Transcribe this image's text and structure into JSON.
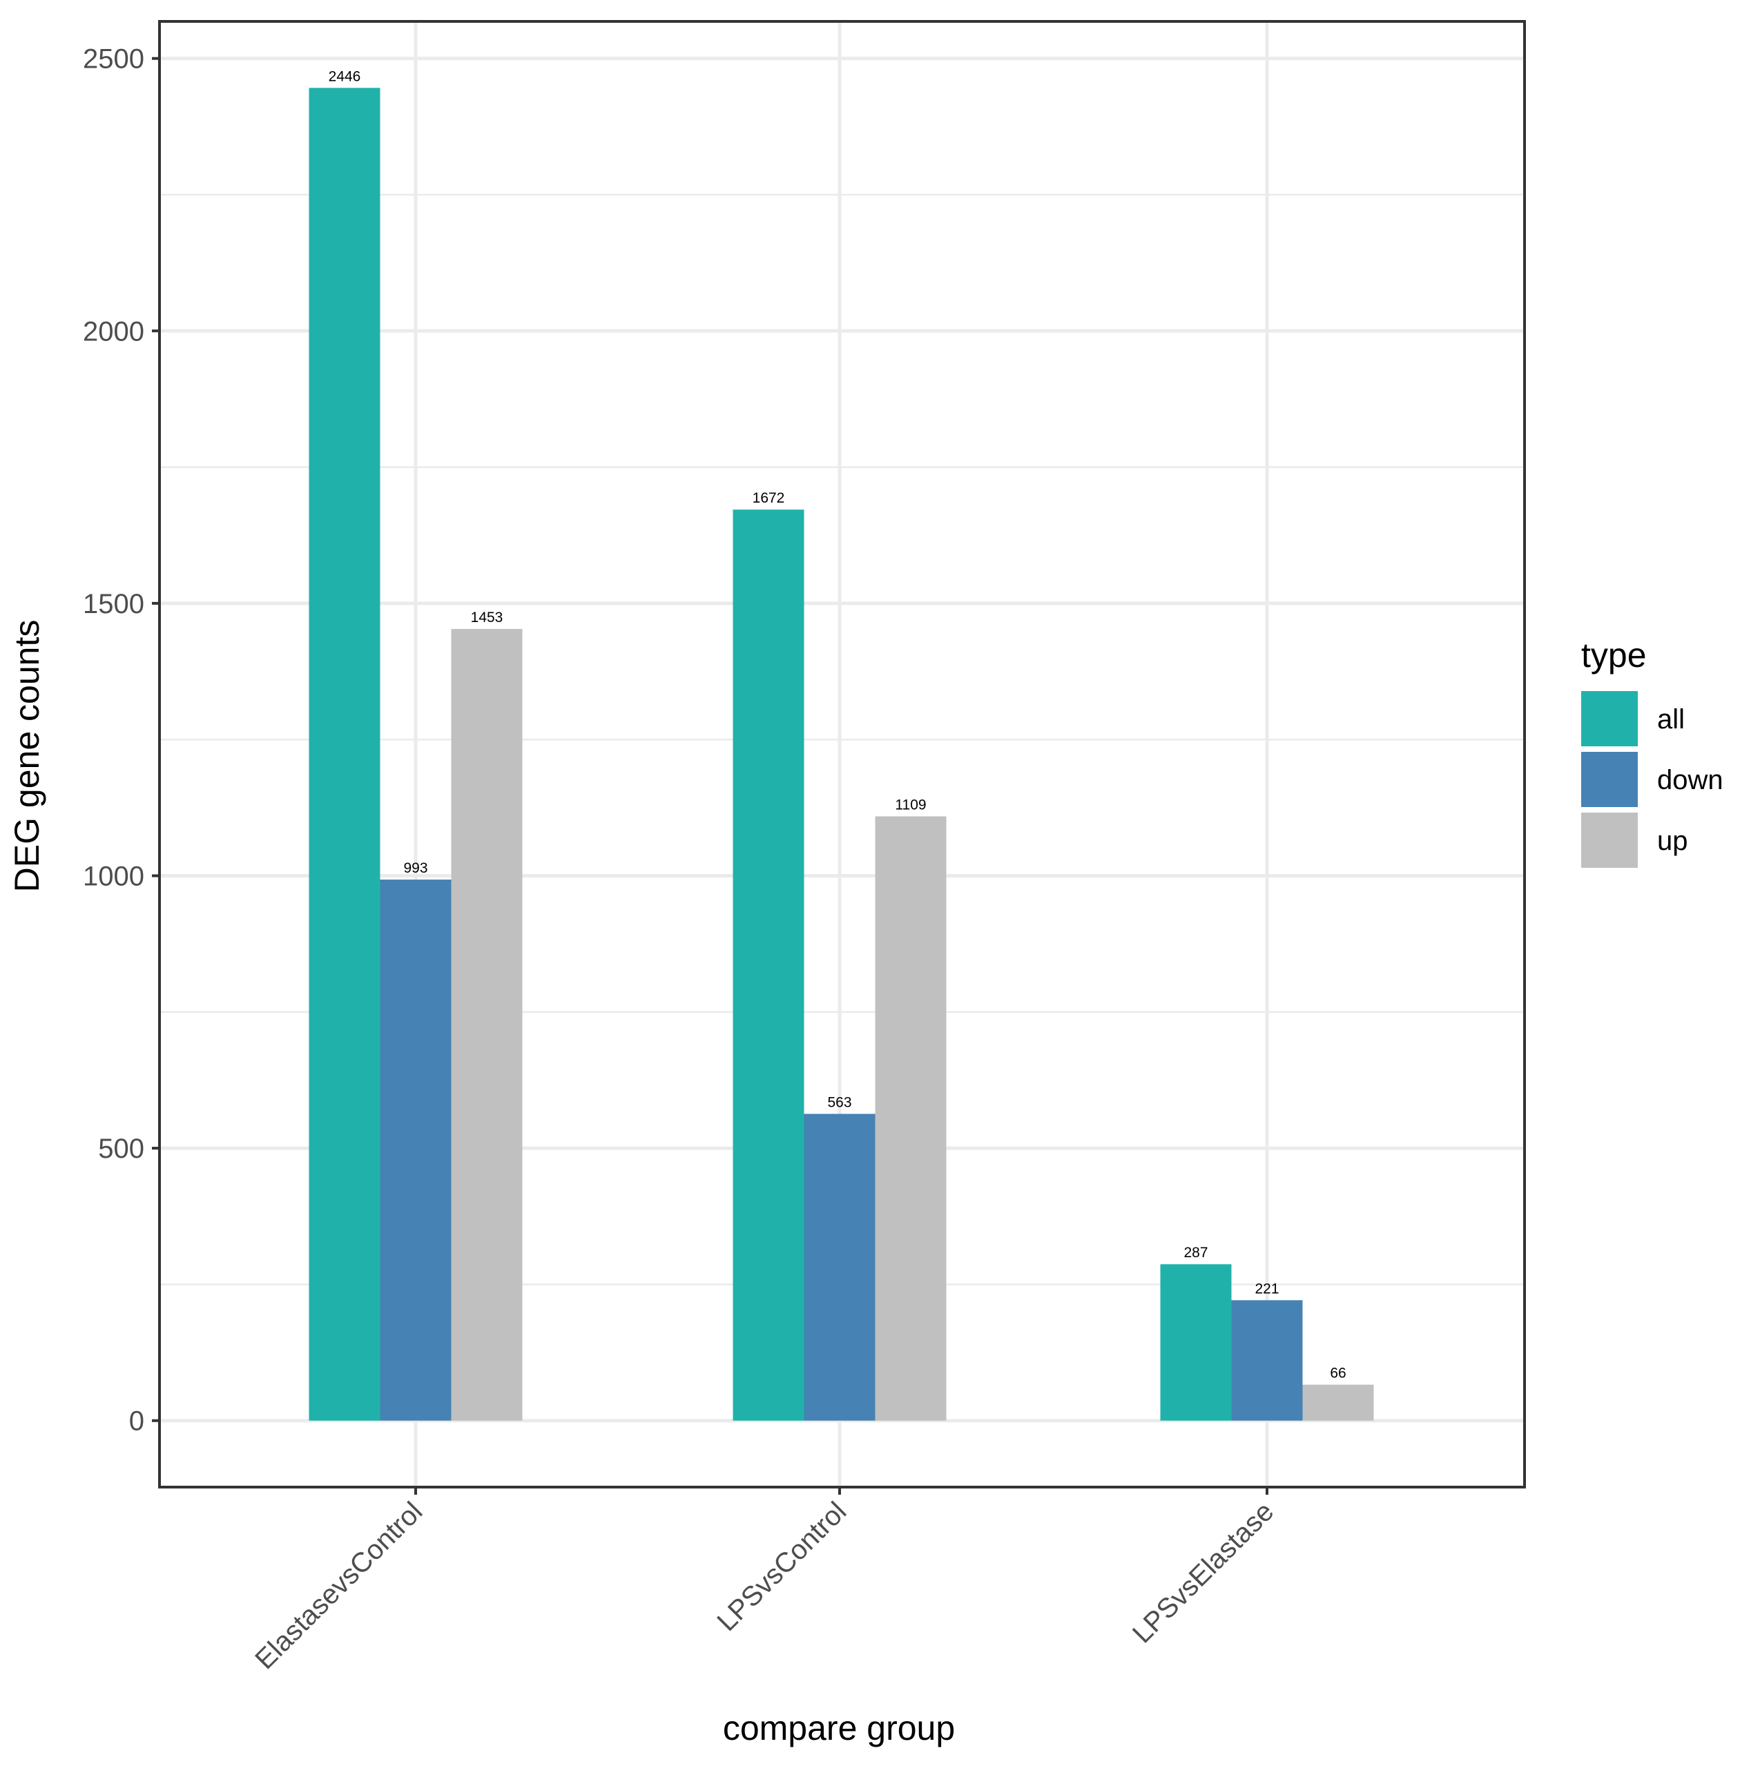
{
  "chart_data": {
    "type": "bar",
    "title": "",
    "xlabel": "compare group",
    "ylabel": "DEG gene counts",
    "categories": [
      "ElastasevsControl",
      "LPSvsControl",
      "LPSvsElastase"
    ],
    "series": [
      {
        "name": "all",
        "color": "#20b2aa",
        "values": [
          2446,
          1672,
          287
        ]
      },
      {
        "name": "down",
        "color": "#4682b4",
        "values": [
          993,
          563,
          221
        ]
      },
      {
        "name": "up",
        "color": "#c0c0c0",
        "values": [
          1453,
          1109,
          66
        ]
      }
    ],
    "ylim": [
      -122,
      2568
    ],
    "yticks": [
      0,
      500,
      1000,
      1500,
      2000,
      2500
    ],
    "yticks_minor": [
      250,
      750,
      1250,
      1750,
      2250
    ],
    "grid": true,
    "legend": {
      "title": "type",
      "position": "right",
      "items": [
        "all",
        "down",
        "up"
      ]
    },
    "data_labels": true
  }
}
